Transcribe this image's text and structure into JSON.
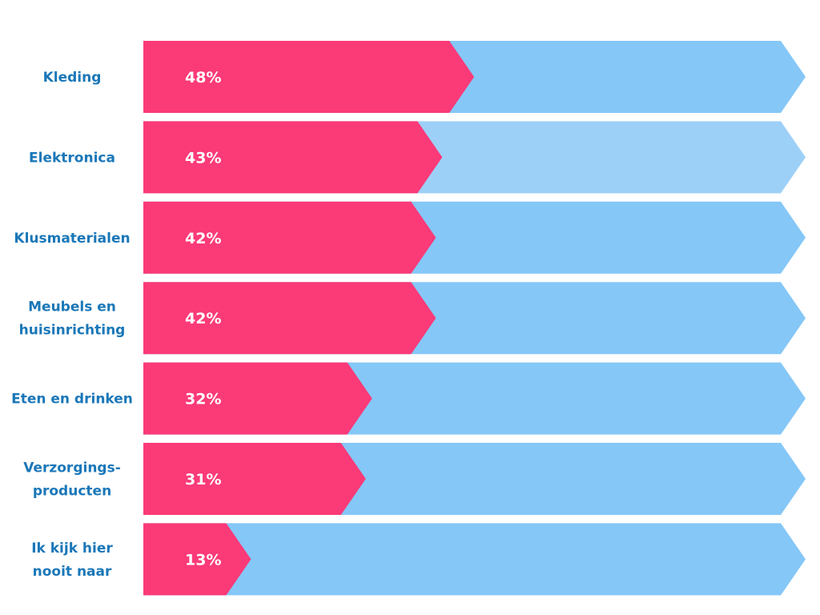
{
  "chart_data": {
    "type": "bar",
    "orientation": "horizontal",
    "categories": [
      [
        "Kleding"
      ],
      [
        "Elektronica"
      ],
      [
        "Klusmaterialen"
      ],
      [
        "Meubels en",
        "huisinrichting"
      ],
      [
        "Eten en drinken"
      ],
      [
        "Verzorgings-",
        "producten"
      ],
      [
        "Ik kijk hier",
        "nooit naar"
      ]
    ],
    "values": [
      48,
      43,
      42,
      42,
      32,
      31,
      13
    ],
    "value_labels": [
      "48%",
      "43%",
      "42%",
      "42%",
      "32%",
      "31%",
      "13%"
    ],
    "xlim": [
      0,
      100
    ],
    "title": "",
    "xlabel": "",
    "ylabel": "",
    "grid": false,
    "colors": {
      "value_fill": "#fb3a78",
      "remainder_fill": "#85c7f7",
      "remainder_fill_highlight": "#9dd0f7",
      "label_text": "#1a77b8",
      "value_text": "#ffffff"
    },
    "highlight_index": 1
  }
}
